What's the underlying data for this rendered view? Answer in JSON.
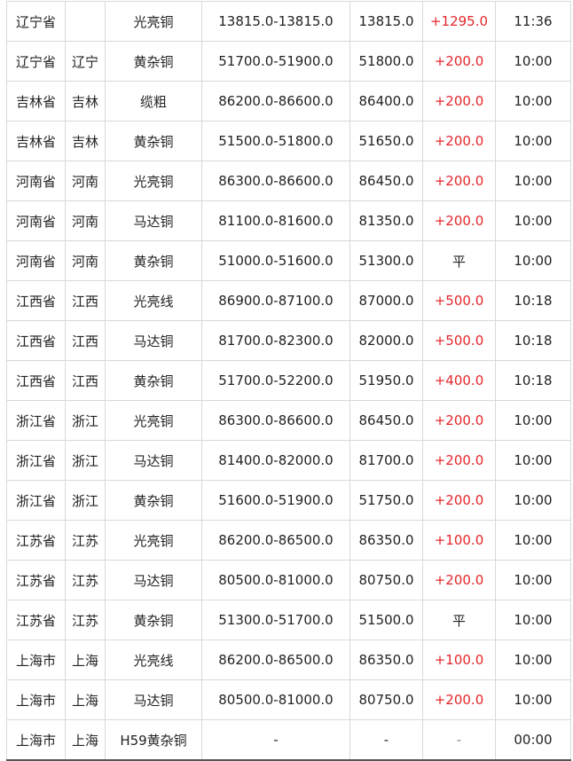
{
  "colors": {
    "up": "#e5262b",
    "border": "#d9d9d9"
  },
  "rows": [
    {
      "province": "辽宁省",
      "city": "",
      "product": "光亮铜",
      "range": "13815.0-13815.0",
      "avg": "13815.0",
      "change": "+1295.0",
      "time": "11:36"
    },
    {
      "province": "辽宁省",
      "city": "辽宁",
      "product": "黄杂铜",
      "range": "51700.0-51900.0",
      "avg": "51800.0",
      "change": "+200.0",
      "time": "10:00"
    },
    {
      "province": "吉林省",
      "city": "吉林",
      "product": "缆粗",
      "range": "86200.0-86600.0",
      "avg": "86400.0",
      "change": "+200.0",
      "time": "10:00"
    },
    {
      "province": "吉林省",
      "city": "吉林",
      "product": "黄杂铜",
      "range": "51500.0-51800.0",
      "avg": "51650.0",
      "change": "+200.0",
      "time": "10:00"
    },
    {
      "province": "河南省",
      "city": "河南",
      "product": "光亮铜",
      "range": "86300.0-86600.0",
      "avg": "86450.0",
      "change": "+200.0",
      "time": "10:00"
    },
    {
      "province": "河南省",
      "city": "河南",
      "product": "马达铜",
      "range": "81100.0-81600.0",
      "avg": "81350.0",
      "change": "+200.0",
      "time": "10:00"
    },
    {
      "province": "河南省",
      "city": "河南",
      "product": "黄杂铜",
      "range": "51000.0-51600.0",
      "avg": "51300.0",
      "change": "平",
      "time": "10:00"
    },
    {
      "province": "江西省",
      "city": "江西",
      "product": "光亮线",
      "range": "86900.0-87100.0",
      "avg": "87000.0",
      "change": "+500.0",
      "time": "10:18"
    },
    {
      "province": "江西省",
      "city": "江西",
      "product": "马达铜",
      "range": "81700.0-82300.0",
      "avg": "82000.0",
      "change": "+500.0",
      "time": "10:18"
    },
    {
      "province": "江西省",
      "city": "江西",
      "product": "黄杂铜",
      "range": "51700.0-52200.0",
      "avg": "51950.0",
      "change": "+400.0",
      "time": "10:18"
    },
    {
      "province": "浙江省",
      "city": "浙江",
      "product": "光亮铜",
      "range": "86300.0-86600.0",
      "avg": "86450.0",
      "change": "+200.0",
      "time": "10:00"
    },
    {
      "province": "浙江省",
      "city": "浙江",
      "product": "马达铜",
      "range": "81400.0-82000.0",
      "avg": "81700.0",
      "change": "+200.0",
      "time": "10:00"
    },
    {
      "province": "浙江省",
      "city": "浙江",
      "product": "黄杂铜",
      "range": "51600.0-51900.0",
      "avg": "51750.0",
      "change": "+200.0",
      "time": "10:00"
    },
    {
      "province": "江苏省",
      "city": "江苏",
      "product": "光亮铜",
      "range": "86200.0-86500.0",
      "avg": "86350.0",
      "change": "+100.0",
      "time": "10:00"
    },
    {
      "province": "江苏省",
      "city": "江苏",
      "product": "马达铜",
      "range": "80500.0-81000.0",
      "avg": "80750.0",
      "change": "+200.0",
      "time": "10:00"
    },
    {
      "province": "江苏省",
      "city": "江苏",
      "product": "黄杂铜",
      "range": "51300.0-51700.0",
      "avg": "51500.0",
      "change": "平",
      "time": "10:00"
    },
    {
      "province": "上海市",
      "city": "上海",
      "product": "光亮线",
      "range": "86200.0-86500.0",
      "avg": "86350.0",
      "change": "+100.0",
      "time": "10:00"
    },
    {
      "province": "上海市",
      "city": "上海",
      "product": "马达铜",
      "range": "80500.0-81000.0",
      "avg": "80750.0",
      "change": "+200.0",
      "time": "10:00"
    },
    {
      "province": "上海市",
      "city": "上海",
      "product": "H59黄杂铜",
      "range": "-",
      "avg": "-",
      "change": "-",
      "time": "00:00"
    }
  ]
}
